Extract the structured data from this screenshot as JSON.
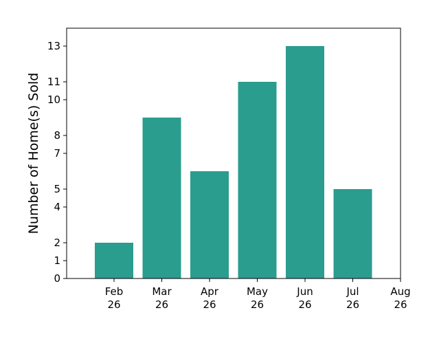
{
  "chart_data": {
    "type": "bar",
    "categories": [
      [
        "Feb",
        "26"
      ],
      [
        "Mar",
        "26"
      ],
      [
        "Apr",
        "26"
      ],
      [
        "May",
        "26"
      ],
      [
        "Jun",
        "26"
      ],
      [
        "Jul",
        "26"
      ]
    ],
    "values": [
      2,
      9,
      6,
      11,
      13,
      5
    ],
    "x_ticks": [
      [
        "Feb",
        "26"
      ],
      [
        "Mar",
        "26"
      ],
      [
        "Apr",
        "26"
      ],
      [
        "May",
        "26"
      ],
      [
        "Jun",
        "26"
      ],
      [
        "Jul",
        "26"
      ],
      [
        "Aug",
        "26"
      ]
    ],
    "y_ticks": [
      0,
      1,
      2,
      4,
      5,
      7,
      8,
      10,
      11,
      13
    ],
    "ylim": [
      0,
      14
    ],
    "xlabel": "",
    "ylabel": "Number of Home(s) Sold",
    "title": "",
    "grid": false,
    "bar_color": "#2a9d8f"
  }
}
